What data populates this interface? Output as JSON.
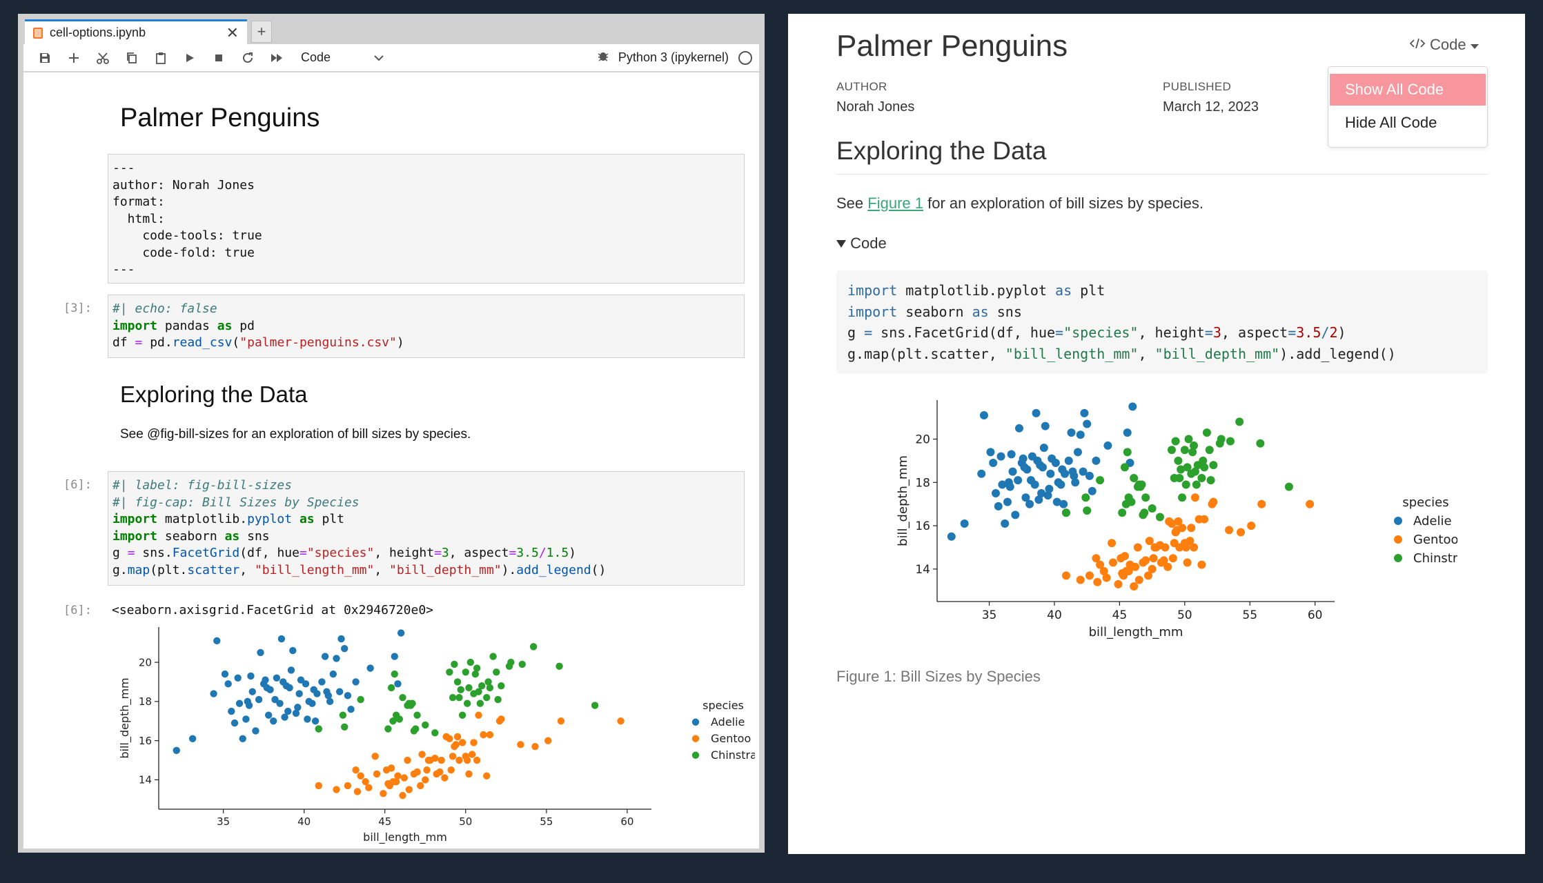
{
  "jupyter": {
    "tab_title": "cell-options.ipynb",
    "tab_close": "✕",
    "new_tab": "+",
    "cell_type": "Code",
    "kernel": "Python 3 (ipykernel)",
    "title": "Palmer Penguins",
    "raw_cell_lines": [
      "---",
      "author: Norah Jones",
      "format:",
      "  html:",
      "    code-tools: true",
      "    code-fold: true",
      "---"
    ],
    "cell1_prompt": "[3]:",
    "cell2_prompt": "[6]:",
    "output_prompt": "[6]:",
    "heading2": "Exploring the Data",
    "paragraph": "See @fig-bill-sizes for an exploration of bill sizes by species.",
    "output_text": "<seaborn.axisgrid.FacetGrid at 0x2946720e0>"
  },
  "quarto": {
    "title": "Palmer Penguins",
    "author_label": "AUTHOR",
    "author": "Norah Jones",
    "published_label": "PUBLISHED",
    "published": "March 12, 2023",
    "code_menu_label": "Code",
    "menu_items": [
      "Show All Code",
      "Hide All Code"
    ],
    "heading2": "Exploring the Data",
    "para_pre": "See ",
    "para_link": "Figure 1",
    "para_post": " for an exploration of bill sizes by species.",
    "code_toggle": "Code",
    "caption": "Figure 1: Bill Sizes by Species"
  },
  "chart_data": [
    {
      "type": "scatter",
      "xlabel": "bill_length_mm",
      "ylabel": "bill_depth_mm",
      "xlim": [
        31,
        61.5
      ],
      "ylim": [
        12.5,
        21.8
      ],
      "xticks": [
        35,
        40,
        45,
        50,
        55,
        60
      ],
      "yticks": [
        14,
        16,
        18,
        20
      ],
      "legend_title": "species",
      "legend_position": "right",
      "series": [
        {
          "name": "Adelie",
          "color": "#1f77b4",
          "points": [
            [
              32.1,
              15.5
            ],
            [
              33.1,
              16.1
            ],
            [
              34.4,
              18.4
            ],
            [
              34.6,
              21.1
            ],
            [
              35.1,
              19.4
            ],
            [
              35.3,
              18.9
            ],
            [
              35.5,
              17.5
            ],
            [
              35.7,
              16.9
            ],
            [
              35.9,
              19.2
            ],
            [
              36.0,
              17.9
            ],
            [
              36.2,
              16.1
            ],
            [
              36.4,
              17.1
            ],
            [
              36.5,
              18.0
            ],
            [
              36.6,
              17.8
            ],
            [
              36.7,
              19.3
            ],
            [
              36.8,
              18.5
            ],
            [
              37.0,
              16.5
            ],
            [
              37.2,
              18.1
            ],
            [
              37.3,
              20.5
            ],
            [
              37.5,
              18.9
            ],
            [
              37.6,
              19.1
            ],
            [
              37.7,
              18.7
            ],
            [
              37.8,
              17.3
            ],
            [
              37.9,
              18.6
            ],
            [
              38.1,
              17.0
            ],
            [
              38.2,
              18.1
            ],
            [
              38.3,
              19.2
            ],
            [
              38.5,
              17.9
            ],
            [
              38.6,
              21.2
            ],
            [
              38.7,
              19.0
            ],
            [
              38.8,
              17.2
            ],
            [
              38.9,
              18.8
            ],
            [
              39.0,
              17.5
            ],
            [
              39.1,
              18.7
            ],
            [
              39.2,
              19.6
            ],
            [
              39.3,
              20.6
            ],
            [
              39.5,
              17.4
            ],
            [
              39.6,
              17.7
            ],
            [
              39.7,
              18.4
            ],
            [
              39.8,
              19.1
            ],
            [
              40.1,
              18.9
            ],
            [
              40.2,
              17.1
            ],
            [
              40.3,
              18.0
            ],
            [
              40.5,
              17.9
            ],
            [
              40.6,
              18.6
            ],
            [
              40.7,
              17.0
            ],
            [
              40.8,
              18.4
            ],
            [
              40.9,
              16.6
            ],
            [
              41.1,
              19.0
            ],
            [
              41.3,
              20.3
            ],
            [
              41.4,
              18.5
            ],
            [
              41.5,
              18.3
            ],
            [
              41.6,
              18.0
            ],
            [
              41.8,
              19.4
            ],
            [
              42.0,
              20.2
            ],
            [
              42.2,
              18.5
            ],
            [
              42.3,
              21.2
            ],
            [
              42.5,
              20.7
            ],
            [
              42.7,
              18.3
            ],
            [
              42.9,
              17.6
            ],
            [
              43.2,
              19.0
            ],
            [
              44.1,
              19.7
            ],
            [
              45.6,
              20.3
            ],
            [
              45.8,
              18.9
            ],
            [
              46.0,
              21.5
            ]
          ]
        },
        {
          "name": "Gentoo",
          "color": "#ff7f0e",
          "points": [
            [
              40.9,
              13.7
            ],
            [
              42.0,
              13.5
            ],
            [
              42.7,
              13.7
            ],
            [
              43.2,
              14.5
            ],
            [
              43.3,
              13.4
            ],
            [
              43.5,
              14.2
            ],
            [
              43.8,
              13.9
            ],
            [
              44.0,
              13.6
            ],
            [
              44.4,
              15.2
            ],
            [
              44.5,
              14.3
            ],
            [
              44.9,
              13.3
            ],
            [
              45.1,
              14.5
            ],
            [
              45.2,
              13.8
            ],
            [
              45.3,
              13.7
            ],
            [
              45.4,
              14.6
            ],
            [
              45.5,
              13.9
            ],
            [
              45.7,
              13.9
            ],
            [
              45.8,
              14.2
            ],
            [
              46.1,
              13.2
            ],
            [
              46.2,
              14.1
            ],
            [
              46.4,
              15.0
            ],
            [
              46.5,
              13.5
            ],
            [
              46.8,
              14.3
            ],
            [
              47.0,
              14.4
            ],
            [
              47.2,
              13.7
            ],
            [
              47.3,
              15.3
            ],
            [
              47.5,
              14.0
            ],
            [
              47.6,
              14.5
            ],
            [
              47.7,
              15.0
            ],
            [
              47.8,
              15.0
            ],
            [
              48.1,
              15.1
            ],
            [
              48.2,
              14.3
            ],
            [
              48.4,
              14.4
            ],
            [
              48.5,
              15.0
            ],
            [
              48.7,
              14.1
            ],
            [
              48.8,
              16.2
            ],
            [
              49.0,
              16.1
            ],
            [
              49.1,
              14.5
            ],
            [
              49.2,
              15.2
            ],
            [
              49.3,
              15.7
            ],
            [
              49.4,
              15.8
            ],
            [
              49.5,
              16.2
            ],
            [
              49.6,
              15.0
            ],
            [
              49.8,
              15.9
            ],
            [
              50.0,
              15.2
            ],
            [
              50.1,
              15.0
            ],
            [
              50.2,
              14.3
            ],
            [
              50.4,
              15.3
            ],
            [
              50.5,
              15.9
            ],
            [
              50.7,
              15.0
            ],
            [
              50.8,
              17.3
            ],
            [
              51.1,
              16.3
            ],
            [
              51.3,
              14.2
            ],
            [
              51.5,
              16.3
            ],
            [
              52.1,
              17.0
            ],
            [
              52.2,
              17.1
            ],
            [
              53.4,
              15.8
            ],
            [
              54.3,
              15.7
            ],
            [
              55.1,
              16.0
            ],
            [
              55.9,
              17.0
            ],
            [
              59.6,
              17.0
            ]
          ]
        },
        {
          "name": "Chinstrap",
          "color": "#2ca02c",
          "points": [
            [
              40.9,
              16.6
            ],
            [
              42.4,
              17.3
            ],
            [
              42.5,
              16.7
            ],
            [
              43.5,
              18.1
            ],
            [
              45.2,
              16.6
            ],
            [
              45.4,
              18.7
            ],
            [
              45.5,
              17.0
            ],
            [
              45.6,
              19.4
            ],
            [
              45.7,
              17.3
            ],
            [
              45.9,
              17.1
            ],
            [
              46.1,
              18.2
            ],
            [
              46.4,
              17.8
            ],
            [
              46.5,
              17.9
            ],
            [
              46.6,
              17.8
            ],
            [
              46.7,
              17.9
            ],
            [
              46.8,
              16.5
            ],
            [
              46.9,
              16.6
            ],
            [
              47.0,
              17.3
            ],
            [
              47.5,
              16.8
            ],
            [
              48.1,
              16.4
            ],
            [
              49.0,
              19.5
            ],
            [
              49.2,
              18.2
            ],
            [
              49.3,
              19.9
            ],
            [
              49.5,
              19.0
            ],
            [
              49.6,
              18.2
            ],
            [
              49.7,
              18.6
            ],
            [
              49.8,
              17.3
            ],
            [
              50.0,
              19.5
            ],
            [
              50.1,
              17.9
            ],
            [
              50.2,
              18.7
            ],
            [
              50.3,
              20.0
            ],
            [
              50.5,
              18.4
            ],
            [
              50.6,
              19.4
            ],
            [
              50.7,
              19.7
            ],
            [
              50.8,
              18.5
            ],
            [
              50.9,
              17.9
            ],
            [
              51.0,
              18.8
            ],
            [
              51.3,
              18.2
            ],
            [
              51.4,
              19.0
            ],
            [
              51.5,
              18.7
            ],
            [
              51.7,
              20.3
            ],
            [
              51.9,
              19.5
            ],
            [
              52.0,
              18.1
            ],
            [
              52.2,
              18.8
            ],
            [
              52.7,
              19.8
            ],
            [
              52.8,
              20.0
            ],
            [
              53.5,
              19.9
            ],
            [
              54.2,
              20.8
            ],
            [
              55.8,
              19.8
            ],
            [
              58.0,
              17.8
            ]
          ]
        }
      ]
    }
  ]
}
